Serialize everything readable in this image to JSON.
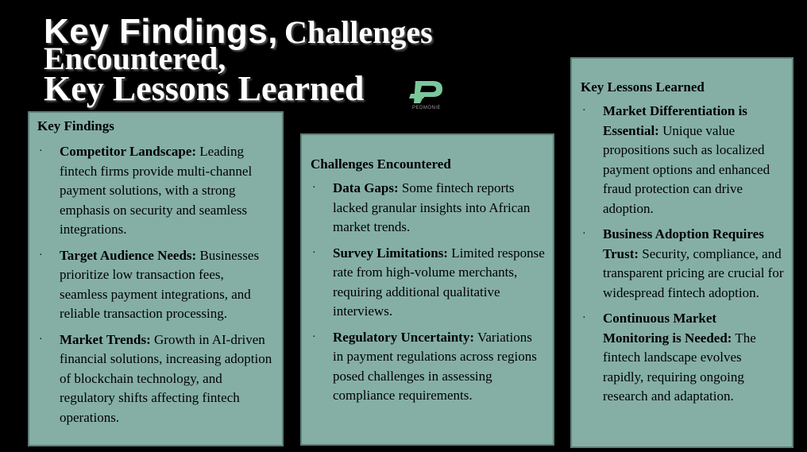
{
  "title": {
    "part1": "Key Findings",
    "comma1": ",",
    "part2": "Challenges",
    "part3": "Encountered,",
    "part4": "Key Lessons Learned"
  },
  "logo": {
    "text": "PEDMONIE",
    "icon": "pedmonie-logo-icon",
    "color": "#7bc79a"
  },
  "colors": {
    "background": "#000000",
    "panel": "#85afa5",
    "panel_border": "#5f7e78",
    "title": "#ffffff"
  },
  "findings": {
    "heading": "Key Findings",
    "items": [
      {
        "lead": "Competitor Landscape:",
        "text": " Leading fintech firms provide multi-channel payment solutions, with a strong emphasis on security and seamless integrations."
      },
      {
        "lead": "Target Audience Needs:",
        "text": " Businesses prioritize low transaction fees, seamless payment integrations, and reliable transaction processing."
      },
      {
        "lead": "Market Trends:",
        "text": " Growth in AI-driven financial solutions, increasing adoption of blockchain technology, and regulatory shifts affecting fintech operations."
      }
    ]
  },
  "challenges": {
    "heading": "Challenges Encountered",
    "items": [
      {
        "lead": "Data Gaps:",
        "text": " Some fintech reports lacked granular insights into African market trends."
      },
      {
        "lead": "Survey Limitations:",
        "text": " Limited response rate from high-volume merchants, requiring additional qualitative interviews."
      },
      {
        "lead": "Regulatory Uncertainty:",
        "text": " Variations in payment regulations across regions posed challenges in assessing compliance requirements."
      }
    ]
  },
  "lessons": {
    "heading": "Key Lessons Learned",
    "items": [
      {
        "lead": "Market Differentiation is Essential:",
        "text": " Unique value propositions such as localized payment options and enhanced fraud protection can drive adoption."
      },
      {
        "lead": "Business Adoption Requires Trust:",
        "text": " Security, compliance, and transparent pricing are crucial for widespread fintech adoption."
      },
      {
        "lead": "Continuous Market Monitoring is Needed:",
        "text": " The fintech landscape evolves rapidly, requiring ongoing research and adaptation."
      }
    ]
  },
  "bullet": "·"
}
